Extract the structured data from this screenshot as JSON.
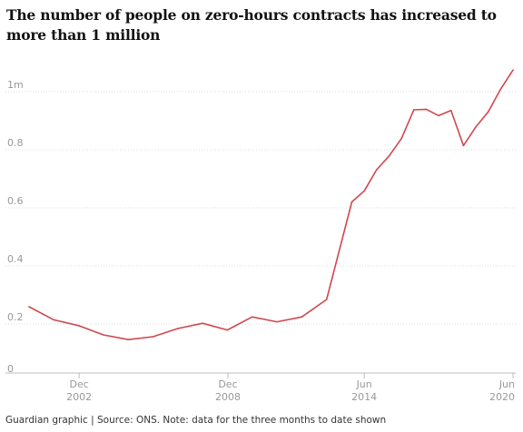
{
  "title": "The number of people on zero-hours contracts has increased to more than 1 million",
  "source": "Guardian graphic | Source: ONS. Note: data for the three months to date shown",
  "colors": {
    "line": "#d0474f",
    "grid": "#dcdcdc",
    "tick_text": "#999999"
  },
  "chart_data": {
    "type": "line",
    "title": "The number of people on zero-hours contracts has increased to more than 1 million",
    "xlabel": "",
    "ylabel": "",
    "xlim": [
      2000.75,
      2020.4
    ],
    "ylim": [
      0,
      1.05
    ],
    "y_ticks": [
      {
        "value": 0,
        "label": "0"
      },
      {
        "value": 0.2,
        "label": "0.2"
      },
      {
        "value": 0.4,
        "label": "0.4"
      },
      {
        "value": 0.6,
        "label": "0.6"
      },
      {
        "value": 0.8,
        "label": "0.8"
      },
      {
        "value": 1.0,
        "label": "1m"
      }
    ],
    "x_ticks": [
      {
        "value": 2002.92,
        "month": "Dec",
        "year": "2002"
      },
      {
        "value": 2008.92,
        "month": "Dec",
        "year": "2008"
      },
      {
        "value": 2014.42,
        "month": "Jun",
        "year": "2014"
      },
      {
        "value": 2020.42,
        "month": "Jun",
        "year": "2020"
      }
    ],
    "grid": true,
    "series": [
      {
        "values_x": [
          2000.9,
          2001.9,
          2002.9,
          2003.9,
          2004.9,
          2005.9,
          2006.9,
          2007.9,
          2008.9,
          2009.9,
          2010.9,
          2011.9,
          2012.9,
          2013.92,
          2014.42,
          2014.92,
          2015.42,
          2015.92,
          2016.42,
          2016.92,
          2017.42,
          2017.92,
          2018.42,
          2018.92,
          2019.42,
          2019.92,
          2020.42
        ],
        "values": [
          0.225,
          0.18,
          0.16,
          0.128,
          0.112,
          0.122,
          0.15,
          0.168,
          0.145,
          0.19,
          0.173,
          0.19,
          0.25,
          0.586,
          0.624,
          0.697,
          0.744,
          0.804,
          0.903,
          0.905,
          0.883,
          0.901,
          0.78,
          0.844,
          0.896,
          0.974,
          1.04
        ]
      }
    ]
  }
}
